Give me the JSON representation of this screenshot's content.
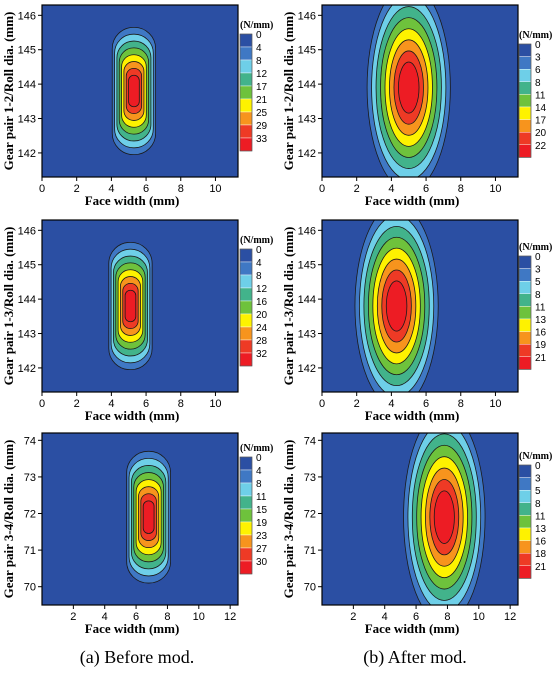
{
  "figure": {
    "caption_a": "(a) Before mod.",
    "caption_b": "(b) After mod."
  },
  "colors": {
    "levels_9": [
      "#2b4fa3",
      "#3f78c4",
      "#6ecfe8",
      "#42b38b",
      "#6ec23c",
      "#fef200",
      "#f7941d",
      "#ee3a25",
      "#ed1c24"
    ],
    "outline": "#1a1a1a",
    "background": "#2b4fa3"
  },
  "chart_data": [
    {
      "type": "heatmap",
      "id": "a1",
      "xlabel": "Face width (mm)",
      "ylabel": "Gear pair 1-2/Roll dia. (mm)",
      "xticks": [
        "0",
        "2",
        "4",
        "6",
        "8",
        "10"
      ],
      "yticks": [
        "142",
        "143",
        "144",
        "145",
        "146"
      ],
      "xlim": [
        0,
        11.3
      ],
      "ylim": [
        141.3,
        146.3
      ],
      "unit": "(N/mm)",
      "legend_levels": [
        "0",
        "4",
        "8",
        "12",
        "17",
        "21",
        "25",
        "29",
        "33"
      ],
      "peak": {
        "x": 5.3,
        "y": 143.8,
        "rx": 1.25,
        "ry": 1.85,
        "shape": "capsule"
      }
    },
    {
      "type": "heatmap",
      "id": "b1",
      "xlabel": "Face width (mm)",
      "ylabel": "Gear pair 1-2/Roll dia. (mm)",
      "xticks": [
        "0",
        "2",
        "4",
        "6",
        "8",
        "10"
      ],
      "yticks": [
        "142",
        "143",
        "144",
        "145",
        "146"
      ],
      "xlim": [
        0,
        11.3
      ],
      "ylim": [
        141.3,
        146.3
      ],
      "unit": "(N/mm)",
      "legend_levels": [
        "0",
        "3",
        "6",
        "8",
        "11",
        "14",
        "17",
        "20",
        "22"
      ],
      "peak": {
        "x": 5.0,
        "y": 143.9,
        "rx": 2.4,
        "ry": 3.0,
        "shape": "ellipse"
      }
    },
    {
      "type": "heatmap",
      "id": "a2",
      "xlabel": "Face width (mm)",
      "ylabel": "Gear pair 1-3/Roll dia. (mm)",
      "xticks": [
        "0",
        "2",
        "4",
        "6",
        "8",
        "10"
      ],
      "yticks": [
        "142",
        "143",
        "144",
        "145",
        "146"
      ],
      "xlim": [
        0,
        11.3
      ],
      "ylim": [
        141.3,
        146.3
      ],
      "unit": "(N/mm)",
      "legend_levels": [
        "0",
        "4",
        "8",
        "12",
        "16",
        "20",
        "24",
        "28",
        "32"
      ],
      "peak": {
        "x": 5.1,
        "y": 143.8,
        "rx": 1.25,
        "ry": 1.85,
        "shape": "capsule"
      }
    },
    {
      "type": "heatmap",
      "id": "b2",
      "xlabel": "Face width (mm)",
      "ylabel": "Gear pair 1-3/Roll dia. (mm)",
      "xticks": [
        "0",
        "2",
        "4",
        "6",
        "8",
        "10"
      ],
      "yticks": [
        "142",
        "143",
        "144",
        "145",
        "146"
      ],
      "xlim": [
        0,
        11.3
      ],
      "ylim": [
        141.3,
        146.3
      ],
      "unit": "(N/mm)",
      "legend_levels": [
        "0",
        "3",
        "5",
        "8",
        "11",
        "13",
        "16",
        "19",
        "21"
      ],
      "peak": {
        "x": 4.3,
        "y": 143.8,
        "rx": 2.4,
        "ry": 2.95,
        "shape": "ellipse"
      }
    },
    {
      "type": "heatmap",
      "id": "a3",
      "xlabel": "Face width (mm)",
      "ylabel": "Gear pair 3-4/Roll dia. (mm)",
      "xticks": [
        "2",
        "4",
        "6",
        "8",
        "10",
        "12"
      ],
      "yticks": [
        "70",
        "71",
        "72",
        "73",
        "74"
      ],
      "xlim": [
        0,
        12.5
      ],
      "ylim": [
        69.5,
        74.2
      ],
      "unit": "(N/mm)",
      "legend_levels": [
        "0",
        "4",
        "8",
        "11",
        "15",
        "19",
        "23",
        "27",
        "30"
      ],
      "peak": {
        "x": 6.8,
        "y": 71.9,
        "rx": 1.4,
        "ry": 1.8,
        "shape": "capsule"
      }
    },
    {
      "type": "heatmap",
      "id": "b3",
      "xlabel": "Face width (mm)",
      "ylabel": "Gear pair 3-4/Roll dia. (mm)",
      "xticks": [
        "2",
        "4",
        "6",
        "8",
        "10",
        "12"
      ],
      "yticks": [
        "70",
        "71",
        "72",
        "73",
        "74"
      ],
      "xlim": [
        0,
        12.5
      ],
      "ylim": [
        69.5,
        74.2
      ],
      "unit": "(N/mm)",
      "legend_levels": [
        "0",
        "3",
        "5",
        "8",
        "11",
        "13",
        "16",
        "18",
        "21"
      ],
      "peak": {
        "x": 7.8,
        "y": 71.9,
        "rx": 2.6,
        "ry": 2.9,
        "shape": "ellipse"
      }
    }
  ]
}
